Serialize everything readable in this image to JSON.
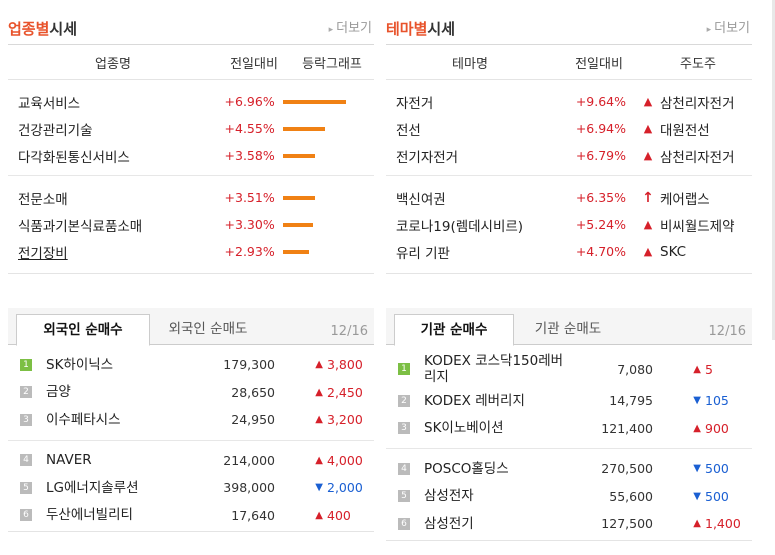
{
  "sector": {
    "title_accent": "업종별",
    "title_rest": "시세",
    "more": "더보기",
    "headers": [
      "업종명",
      "전일대비",
      "등락그래프"
    ],
    "items": [
      {
        "name": "교육서비스",
        "change": "+6.96%",
        "bar_pct": 0.96
      },
      {
        "name": "건강관리기술",
        "change": "+4.55%",
        "bar_pct": 0.63
      },
      {
        "name": "다각화된통신서비스",
        "change": "+3.58%",
        "bar_pct": 0.49
      },
      {
        "name": "전문소매",
        "change": "+3.51%",
        "bar_pct": 0.48
      },
      {
        "name": "식품과기본식료품소매",
        "change": "+3.30%",
        "bar_pct": 0.45
      },
      {
        "name": "전기장비",
        "change": "+2.93%",
        "bar_pct": 0.4
      }
    ]
  },
  "theme": {
    "title_accent": "테마별",
    "title_rest": "시세",
    "more": "더보기",
    "headers": [
      "테마명",
      "전일대비",
      "주도주"
    ],
    "items": [
      {
        "name": "자전거",
        "change": "+9.64%",
        "leader": "삼천리자전거",
        "icon": "triangle"
      },
      {
        "name": "전선",
        "change": "+6.94%",
        "leader": "대원전선",
        "icon": "triangle"
      },
      {
        "name": "전기자전거",
        "change": "+6.79%",
        "leader": "삼천리자전거",
        "icon": "triangle"
      },
      {
        "name": "백신여권",
        "change": "+6.35%",
        "leader": "케어랩스",
        "icon": "arrow"
      },
      {
        "name": "코로나19(렘데시비르)",
        "change": "+5.24%",
        "leader": "비씨월드제약",
        "icon": "triangle"
      },
      {
        "name": "유리 기판",
        "change": "+4.70%",
        "leader": "SKC",
        "icon": "triangle"
      }
    ]
  },
  "foreign": {
    "tab_active": "외국인 순매수",
    "tab_inactive": "외국인 순매도",
    "date": "12/16",
    "items": [
      {
        "rank": "1",
        "name": "SK하이닉스",
        "price": "179,300",
        "dir": "up",
        "change": "3,800"
      },
      {
        "rank": "2",
        "name": "금양",
        "price": "28,650",
        "dir": "up",
        "change": "2,450"
      },
      {
        "rank": "3",
        "name": "이수페타시스",
        "price": "24,950",
        "dir": "up",
        "change": "3,200"
      },
      {
        "rank": "4",
        "name": "NAVER",
        "price": "214,000",
        "dir": "up",
        "change": "4,000"
      },
      {
        "rank": "5",
        "name": "LG에너지솔루션",
        "price": "398,000",
        "dir": "down",
        "change": "2,000"
      },
      {
        "rank": "6",
        "name": "두산에너빌리티",
        "price": "17,640",
        "dir": "up",
        "change": "400"
      }
    ]
  },
  "institution": {
    "tab_active": "기관 순매수",
    "tab_inactive": "기관 순매도",
    "date": "12/16",
    "items": [
      {
        "rank": "1",
        "name": "KODEX 코스닥150레버리지",
        "price": "7,080",
        "dir": "up",
        "change": "5"
      },
      {
        "rank": "2",
        "name": "KODEX 레버리지",
        "price": "14,795",
        "dir": "down",
        "change": "105"
      },
      {
        "rank": "3",
        "name": "SK이노베이션",
        "price": "121,400",
        "dir": "up",
        "change": "900"
      },
      {
        "rank": "4",
        "name": "POSCO홀딩스",
        "price": "270,500",
        "dir": "down",
        "change": "500"
      },
      {
        "rank": "5",
        "name": "삼성전자",
        "price": "55,600",
        "dir": "down",
        "change": "500"
      },
      {
        "rank": "6",
        "name": "삼성전기",
        "price": "127,500",
        "dir": "up",
        "change": "1,400"
      }
    ]
  },
  "colors": {
    "accent": "#e8532b",
    "up": "#d6202a",
    "down": "#1a5fd2",
    "bar": "#f08114",
    "rank_first": "#7cbf44"
  }
}
